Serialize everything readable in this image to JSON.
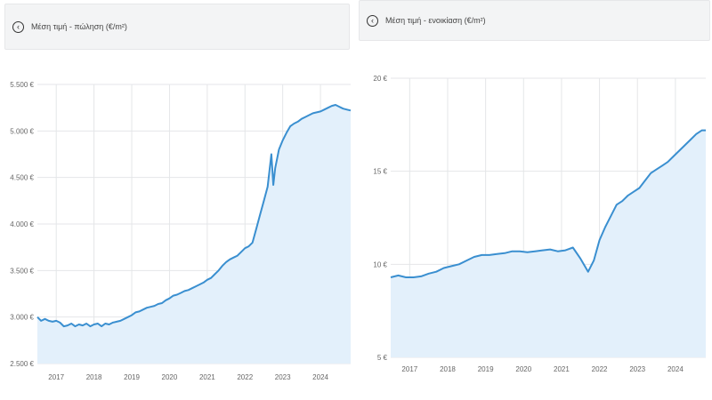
{
  "panels": [
    {
      "header": {
        "back_icon": "chevron-left-circle-icon",
        "title": "Μέση τιμή - πώληση (€/m²)"
      },
      "chart_data": {
        "type": "area",
        "title": "Μέση τιμή - πώληση (€/m²)",
        "ylim": [
          2500,
          5500
        ],
        "yticks": [
          2500,
          3000,
          3500,
          4000,
          4500,
          5000,
          5500
        ],
        "ytick_labels": [
          "2.500 €",
          "3.000 €",
          "3.500 €",
          "4.000 €",
          "4.500 €",
          "5.000 €",
          "5.500 €"
        ],
        "xlim": [
          2016.5,
          2024.8
        ],
        "xticks": [
          2017,
          2018,
          2019,
          2020,
          2021,
          2022,
          2023,
          2024
        ],
        "xtick_labels": [
          "2017",
          "2018",
          "2019",
          "2020",
          "2021",
          "2022",
          "2023",
          "2024"
        ],
        "grid": true,
        "line_color": "#3a8fd0",
        "fill_color": "#e3f0fb",
        "x": [
          2016.5,
          2016.6,
          2016.7,
          2016.8,
          2016.9,
          2017.0,
          2017.1,
          2017.2,
          2017.3,
          2017.4,
          2017.5,
          2017.6,
          2017.7,
          2017.8,
          2017.9,
          2018.0,
          2018.1,
          2018.2,
          2018.3,
          2018.4,
          2018.5,
          2018.6,
          2018.7,
          2018.8,
          2018.9,
          2019.0,
          2019.1,
          2019.2,
          2019.3,
          2019.4,
          2019.5,
          2019.6,
          2019.7,
          2019.8,
          2019.9,
          2020.0,
          2020.1,
          2020.2,
          2020.3,
          2020.4,
          2020.5,
          2020.6,
          2020.7,
          2020.8,
          2020.9,
          2021.0,
          2021.1,
          2021.2,
          2021.3,
          2021.4,
          2021.5,
          2021.6,
          2021.7,
          2021.8,
          2021.9,
          2022.0,
          2022.1,
          2022.2,
          2022.3,
          2022.4,
          2022.5,
          2022.6,
          2022.7,
          2022.75,
          2022.8,
          2022.9,
          2023.0,
          2023.1,
          2023.2,
          2023.3,
          2023.4,
          2023.5,
          2023.6,
          2023.7,
          2023.8,
          2023.9,
          2024.0,
          2024.1,
          2024.2,
          2024.3,
          2024.4,
          2024.5,
          2024.6,
          2024.7,
          2024.8
        ],
        "y": [
          3000,
          2960,
          2980,
          2960,
          2950,
          2960,
          2940,
          2900,
          2910,
          2930,
          2900,
          2920,
          2910,
          2930,
          2900,
          2920,
          2930,
          2900,
          2930,
          2920,
          2940,
          2950,
          2960,
          2980,
          3000,
          3020,
          3050,
          3060,
          3080,
          3100,
          3110,
          3120,
          3140,
          3150,
          3180,
          3200,
          3230,
          3240,
          3260,
          3280,
          3290,
          3310,
          3330,
          3350,
          3370,
          3400,
          3420,
          3460,
          3500,
          3550,
          3590,
          3620,
          3640,
          3660,
          3700,
          3740,
          3760,
          3800,
          3950,
          4100,
          4250,
          4400,
          4750,
          4420,
          4600,
          4800,
          4900,
          4980,
          5050,
          5080,
          5100,
          5130,
          5150,
          5170,
          5190,
          5200,
          5210,
          5230,
          5250,
          5270,
          5280,
          5260,
          5240,
          5230,
          5220
        ]
      }
    },
    {
      "header": {
        "back_icon": "chevron-left-circle-icon",
        "title": "Μέση τιμή - ενοικίαση (€/m²)"
      },
      "chart_data": {
        "type": "area",
        "title": "Μέση τιμή - ενοικίαση (€/m²)",
        "ylim": [
          5,
          20
        ],
        "yticks": [
          5,
          10,
          15,
          20
        ],
        "ytick_labels": [
          "5 €",
          "10 €",
          "15 €",
          "20 €"
        ],
        "xlim": [
          2016.5,
          2024.8
        ],
        "xticks": [
          2017,
          2018,
          2019,
          2020,
          2021,
          2022,
          2023,
          2024
        ],
        "xtick_labels": [
          "2017",
          "2018",
          "2019",
          "2020",
          "2021",
          "2022",
          "2023",
          "2024"
        ],
        "grid": true,
        "line_color": "#3a8fd0",
        "fill_color": "#e3f0fb",
        "x": [
          2016.5,
          2016.7,
          2016.9,
          2017.1,
          2017.3,
          2017.5,
          2017.7,
          2017.9,
          2018.1,
          2018.3,
          2018.5,
          2018.7,
          2018.9,
          2019.1,
          2019.3,
          2019.5,
          2019.7,
          2019.9,
          2020.1,
          2020.3,
          2020.5,
          2020.7,
          2020.9,
          2021.1,
          2021.3,
          2021.5,
          2021.7,
          2021.85,
          2022.0,
          2022.15,
          2022.3,
          2022.45,
          2022.6,
          2022.75,
          2022.9,
          2023.05,
          2023.2,
          2023.35,
          2023.5,
          2023.65,
          2023.8,
          2023.95,
          2024.1,
          2024.25,
          2024.4,
          2024.55,
          2024.7,
          2024.8
        ],
        "y": [
          9.3,
          9.4,
          9.3,
          9.3,
          9.35,
          9.5,
          9.6,
          9.8,
          9.9,
          10.0,
          10.2,
          10.4,
          10.5,
          10.5,
          10.55,
          10.6,
          10.7,
          10.7,
          10.65,
          10.7,
          10.75,
          10.8,
          10.7,
          10.75,
          10.9,
          10.3,
          9.6,
          10.2,
          11.3,
          12.0,
          12.6,
          13.2,
          13.4,
          13.7,
          13.9,
          14.1,
          14.5,
          14.9,
          15.1,
          15.3,
          15.5,
          15.8,
          16.1,
          16.4,
          16.7,
          17.0,
          17.2,
          17.2
        ]
      }
    }
  ]
}
